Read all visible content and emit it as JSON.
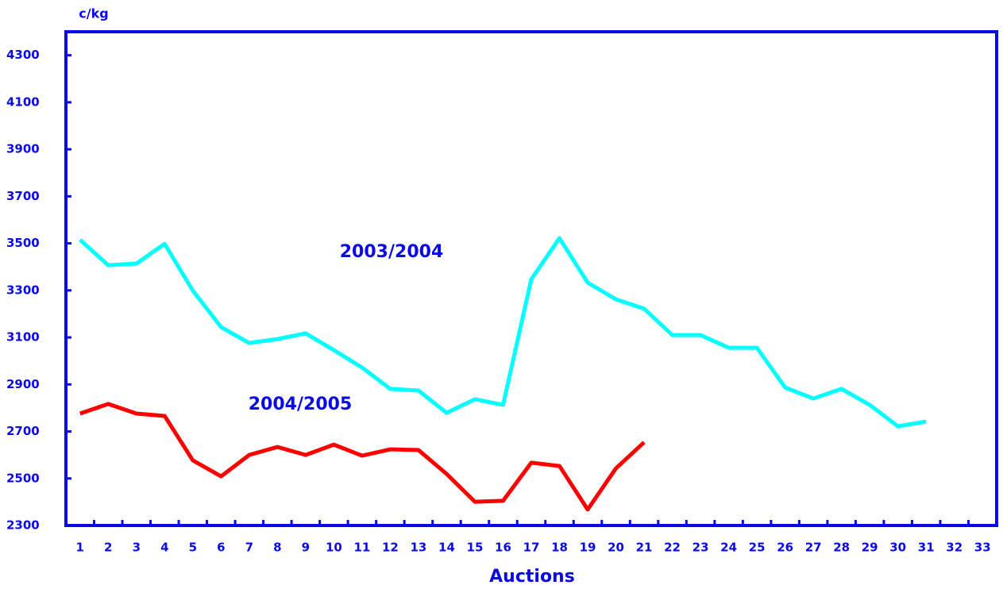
{
  "chart_data": {
    "type": "line",
    "y_label": "c/kg",
    "x_label": "Auctions",
    "categories": [
      "1",
      "2",
      "3",
      "4",
      "5",
      "6",
      "7",
      "8",
      "9",
      "10",
      "11",
      "12",
      "13",
      "14",
      "15",
      "16",
      "17",
      "18",
      "19",
      "20",
      "21",
      "22",
      "23",
      "24",
      "25",
      "26",
      "27",
      "28",
      "29",
      "30",
      "31",
      "32",
      "33"
    ],
    "series": [
      {
        "name": "2003/2004",
        "color": "#00ffff",
        "values": [
          3515,
          3407,
          3414,
          3498,
          3299,
          3144,
          3076,
          3093,
          3117,
          3046,
          2972,
          2881,
          2874,
          2779,
          2837,
          2813,
          3347,
          3522,
          3333,
          3262,
          3222,
          3110,
          3110,
          3056,
          3056,
          2887,
          2840,
          2881,
          2813,
          2722,
          2742,
          null,
          null
        ]
      },
      {
        "name": "2004/2005",
        "color": "#ff0000",
        "values": [
          2776,
          2817,
          2776,
          2766,
          2577,
          2509,
          2600,
          2634,
          2600,
          2644,
          2597,
          2624,
          2621,
          2519,
          2401,
          2405,
          2567,
          2553,
          2368,
          2543,
          2654,
          null,
          null,
          null,
          null,
          null,
          null,
          null,
          null,
          null,
          null,
          null,
          null
        ]
      }
    ],
    "ylim": [
      2300,
      4400
    ],
    "yticks": [
      2300,
      2500,
      2700,
      2900,
      3100,
      3300,
      3500,
      3700,
      3900,
      4100,
      4300
    ],
    "axis_color": "#0a0ae6"
  }
}
